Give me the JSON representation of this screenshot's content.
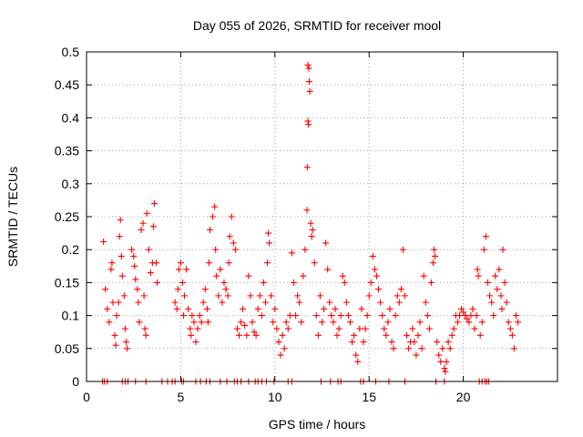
{
  "chart_data": {
    "type": "scatter",
    "title": "Day 055 of 2026, SRMTID for receiver mool",
    "xlabel": "GPS time / hours",
    "ylabel": "SRMTID / TECUs",
    "xlim": [
      0,
      25
    ],
    "ylim": [
      0,
      0.5
    ],
    "xticks": [
      0,
      5,
      10,
      15,
      20
    ],
    "xtick_labels": [
      "0",
      "5",
      "10",
      "15",
      "20"
    ],
    "yticks": [
      0,
      0.05,
      0.1,
      0.15,
      0.2,
      0.25,
      0.3,
      0.35,
      0.4,
      0.45,
      0.5
    ],
    "ytick_labels": [
      "0",
      "0.05",
      "0.1",
      "0.15",
      "0.2",
      "0.25",
      "0.3",
      "0.35",
      "0.4",
      "0.45",
      "0.5"
    ],
    "grid": true,
    "marker": "+",
    "series": [
      {
        "name": "SRMTID",
        "color": "#ff0000",
        "points": [
          [
            0.9,
            0.212
          ],
          [
            1.0,
            0.14
          ],
          [
            1.1,
            0.11
          ],
          [
            1.2,
            0.09
          ],
          [
            1.3,
            0.17
          ],
          [
            1.35,
            0.18
          ],
          [
            1.4,
            0.12
          ],
          [
            1.5,
            0.07
          ],
          [
            1.55,
            0.055
          ],
          [
            1.6,
            0.1
          ],
          [
            1.7,
            0.12
          ],
          [
            1.75,
            0.22
          ],
          [
            1.8,
            0.245
          ],
          [
            1.85,
            0.19
          ],
          [
            1.9,
            0.16
          ],
          [
            2.0,
            0.13
          ],
          [
            2.05,
            0.08
          ],
          [
            2.1,
            0.06
          ],
          [
            2.15,
            0.05
          ],
          [
            2.4,
            0.2
          ],
          [
            2.5,
            0.19
          ],
          [
            2.55,
            0.175
          ],
          [
            2.6,
            0.155
          ],
          [
            2.7,
            0.14
          ],
          [
            2.75,
            0.12
          ],
          [
            2.8,
            0.09
          ],
          [
            2.9,
            0.23
          ],
          [
            3.0,
            0.24
          ],
          [
            3.05,
            0.13
          ],
          [
            3.1,
            0.08
          ],
          [
            3.15,
            0.07
          ],
          [
            3.2,
            0.255
          ],
          [
            3.3,
            0.2
          ],
          [
            3.4,
            0.165
          ],
          [
            3.5,
            0.18
          ],
          [
            3.55,
            0.235
          ],
          [
            3.6,
            0.27
          ],
          [
            3.7,
            0.18
          ],
          [
            3.75,
            0.15
          ],
          [
            4.7,
            0.12
          ],
          [
            4.8,
            0.11
          ],
          [
            4.85,
            0.14
          ],
          [
            4.9,
            0.17
          ],
          [
            5.0,
            0.18
          ],
          [
            5.1,
            0.15
          ],
          [
            5.15,
            0.1
          ],
          [
            5.2,
            0.13
          ],
          [
            5.3,
            0.17
          ],
          [
            5.4,
            0.11
          ],
          [
            5.5,
            0.08
          ],
          [
            5.55,
            0.07
          ],
          [
            5.6,
            0.1
          ],
          [
            5.7,
            0.09
          ],
          [
            5.8,
            0.06
          ],
          [
            5.9,
            0.08
          ],
          [
            6.0,
            0.1
          ],
          [
            6.1,
            0.09
          ],
          [
            6.2,
            0.12
          ],
          [
            6.3,
            0.14
          ],
          [
            6.4,
            0.11
          ],
          [
            6.45,
            0.09
          ],
          [
            6.5,
            0.18
          ],
          [
            6.55,
            0.23
          ],
          [
            6.7,
            0.25
          ],
          [
            6.8,
            0.265
          ],
          [
            6.85,
            0.2
          ],
          [
            6.9,
            0.16
          ],
          [
            7.0,
            0.13
          ],
          [
            7.1,
            0.17
          ],
          [
            7.2,
            0.12
          ],
          [
            7.3,
            0.15
          ],
          [
            7.4,
            0.14
          ],
          [
            7.5,
            0.13
          ],
          [
            7.55,
            0.18
          ],
          [
            7.6,
            0.22
          ],
          [
            7.7,
            0.25
          ],
          [
            7.8,
            0.21
          ],
          [
            7.9,
            0.2
          ],
          [
            8.0,
            0.08
          ],
          [
            8.1,
            0.07
          ],
          [
            8.2,
            0.09
          ],
          [
            8.3,
            0.11
          ],
          [
            8.4,
            0.085
          ],
          [
            8.5,
            0.07
          ],
          [
            8.6,
            0.16
          ],
          [
            8.7,
            0.13
          ],
          [
            8.8,
            0.09
          ],
          [
            8.9,
            0.075
          ],
          [
            9.0,
            0.07
          ],
          [
            9.1,
            0.11
          ],
          [
            9.2,
            0.13
          ],
          [
            9.3,
            0.1
          ],
          [
            9.4,
            0.15
          ],
          [
            9.5,
            0.12
          ],
          [
            9.6,
            0.18
          ],
          [
            9.65,
            0.225
          ],
          [
            9.7,
            0.21
          ],
          [
            9.8,
            0.13
          ],
          [
            9.9,
            0.09
          ],
          [
            10.0,
            0.11
          ],
          [
            10.1,
            0.08
          ],
          [
            10.2,
            0.06
          ],
          [
            10.3,
            0.04
          ],
          [
            10.4,
            0.07
          ],
          [
            10.5,
            0.05
          ],
          [
            10.6,
            0.09
          ],
          [
            10.7,
            0.08
          ],
          [
            10.8,
            0.1
          ],
          [
            10.9,
            0.195
          ],
          [
            11.0,
            0.15
          ],
          [
            11.1,
            0.1
          ],
          [
            11.2,
            0.13
          ],
          [
            11.3,
            0.12
          ],
          [
            11.4,
            0.09
          ],
          [
            11.5,
            0.16
          ],
          [
            11.6,
            0.2
          ],
          [
            11.7,
            0.26
          ],
          [
            11.75,
            0.48
          ],
          [
            11.8,
            0.475
          ],
          [
            11.82,
            0.455
          ],
          [
            11.85,
            0.44
          ],
          [
            11.75,
            0.395
          ],
          [
            11.78,
            0.39
          ],
          [
            11.72,
            0.325
          ],
          [
            11.9,
            0.24
          ],
          [
            11.95,
            0.22
          ],
          [
            12.0,
            0.23
          ],
          [
            12.1,
            0.18
          ],
          [
            12.2,
            0.1
          ],
          [
            12.3,
            0.07
          ],
          [
            12.4,
            0.13
          ],
          [
            12.5,
            0.09
          ],
          [
            12.6,
            0.11
          ],
          [
            12.7,
            0.21
          ],
          [
            12.8,
            0.17
          ],
          [
            12.9,
            0.12
          ],
          [
            13.0,
            0.1
          ],
          [
            13.1,
            0.09
          ],
          [
            13.2,
            0.11
          ],
          [
            13.3,
            0.07
          ],
          [
            13.4,
            0.08
          ],
          [
            13.5,
            0.1
          ],
          [
            13.6,
            0.16
          ],
          [
            13.7,
            0.15
          ],
          [
            13.8,
            0.12
          ],
          [
            13.9,
            0.1
          ],
          [
            14.0,
            0.09
          ],
          [
            14.1,
            0.06
          ],
          [
            14.2,
            0.07
          ],
          [
            14.3,
            0.04
          ],
          [
            14.4,
            0.03
          ],
          [
            14.5,
            0.08
          ],
          [
            14.6,
            0.11
          ],
          [
            14.7,
            0.06
          ],
          [
            14.8,
            0.08
          ],
          [
            14.9,
            0.1
          ],
          [
            15.0,
            0.13
          ],
          [
            15.1,
            0.15
          ],
          [
            15.2,
            0.19
          ],
          [
            15.3,
            0.17
          ],
          [
            15.4,
            0.16
          ],
          [
            15.5,
            0.14
          ],
          [
            15.6,
            0.12
          ],
          [
            15.7,
            0.1
          ],
          [
            15.8,
            0.08
          ],
          [
            15.9,
            0.07
          ],
          [
            16.0,
            0.09
          ],
          [
            16.1,
            0.11
          ],
          [
            16.2,
            0.06
          ],
          [
            16.3,
            0.05
          ],
          [
            16.4,
            0.1
          ],
          [
            16.5,
            0.13
          ],
          [
            16.6,
            0.12
          ],
          [
            16.7,
            0.14
          ],
          [
            16.8,
            0.2
          ],
          [
            16.9,
            0.13
          ],
          [
            17.0,
            0.07
          ],
          [
            17.1,
            0.05
          ],
          [
            17.2,
            0.06
          ],
          [
            17.3,
            0.08
          ],
          [
            17.4,
            0.06
          ],
          [
            17.5,
            0.04
          ],
          [
            17.6,
            0.07
          ],
          [
            17.7,
            0.09
          ],
          [
            17.8,
            0.05
          ],
          [
            17.9,
            0.16
          ],
          [
            18.0,
            0.12
          ],
          [
            18.1,
            0.1
          ],
          [
            18.2,
            0.08
          ],
          [
            18.3,
            0.15
          ],
          [
            18.4,
            0.18
          ],
          [
            18.45,
            0.2
          ],
          [
            18.5,
            0.19
          ],
          [
            18.6,
            0.06
          ],
          [
            18.7,
            0.04
          ],
          [
            18.8,
            0.03
          ],
          [
            18.9,
            0.05
          ],
          [
            19.0,
            0.02
          ],
          [
            19.05,
            0.015
          ],
          [
            19.1,
            0.03
          ],
          [
            19.2,
            0.06
          ],
          [
            19.3,
            0.05
          ],
          [
            19.4,
            0.07
          ],
          [
            19.5,
            0.08
          ],
          [
            19.6,
            0.1
          ],
          [
            19.7,
            0.09
          ],
          [
            19.8,
            0.1
          ],
          [
            19.9,
            0.11
          ],
          [
            20.0,
            0.105
          ],
          [
            20.1,
            0.1
          ],
          [
            20.2,
            0.095
          ],
          [
            20.3,
            0.09
          ],
          [
            20.4,
            0.1
          ],
          [
            20.5,
            0.11
          ],
          [
            20.6,
            0.08
          ],
          [
            20.7,
            0.1
          ],
          [
            20.75,
            0.17
          ],
          [
            20.8,
            0.16
          ],
          [
            20.9,
            0.07
          ],
          [
            21.0,
            0.09
          ],
          [
            21.1,
            0.2
          ],
          [
            21.2,
            0.22
          ],
          [
            21.3,
            0.15
          ],
          [
            21.4,
            0.13
          ],
          [
            21.5,
            0.12
          ],
          [
            21.6,
            0.1
          ],
          [
            21.7,
            0.16
          ],
          [
            21.8,
            0.14
          ],
          [
            21.9,
            0.17
          ],
          [
            22.0,
            0.13
          ],
          [
            22.05,
            0.11
          ],
          [
            22.1,
            0.2
          ],
          [
            22.2,
            0.15
          ],
          [
            22.3,
            0.12
          ],
          [
            22.4,
            0.09
          ],
          [
            22.5,
            0.08
          ],
          [
            22.6,
            0.07
          ],
          [
            22.7,
            0.05
          ],
          [
            22.8,
            0.1
          ],
          [
            22.9,
            0.09
          ]
        ],
        "zero_points": [
          0.85,
          0.95,
          1.1,
          1.9,
          2.05,
          2.2,
          2.6,
          3.15,
          4.0,
          4.3,
          4.55,
          4.7,
          5.05,
          5.15,
          5.8,
          6.05,
          6.35,
          6.55,
          7.1,
          7.45,
          7.85,
          8.0,
          8.2,
          8.6,
          8.95,
          9.1,
          9.3,
          9.55,
          9.95,
          10.7,
          10.9,
          12.45,
          12.95,
          13.35,
          13.5,
          14.55,
          14.7,
          15.35,
          16.05,
          16.9,
          18.55,
          19.0,
          20.85,
          21.0,
          21.15,
          21.25,
          21.35
        ]
      }
    ]
  }
}
